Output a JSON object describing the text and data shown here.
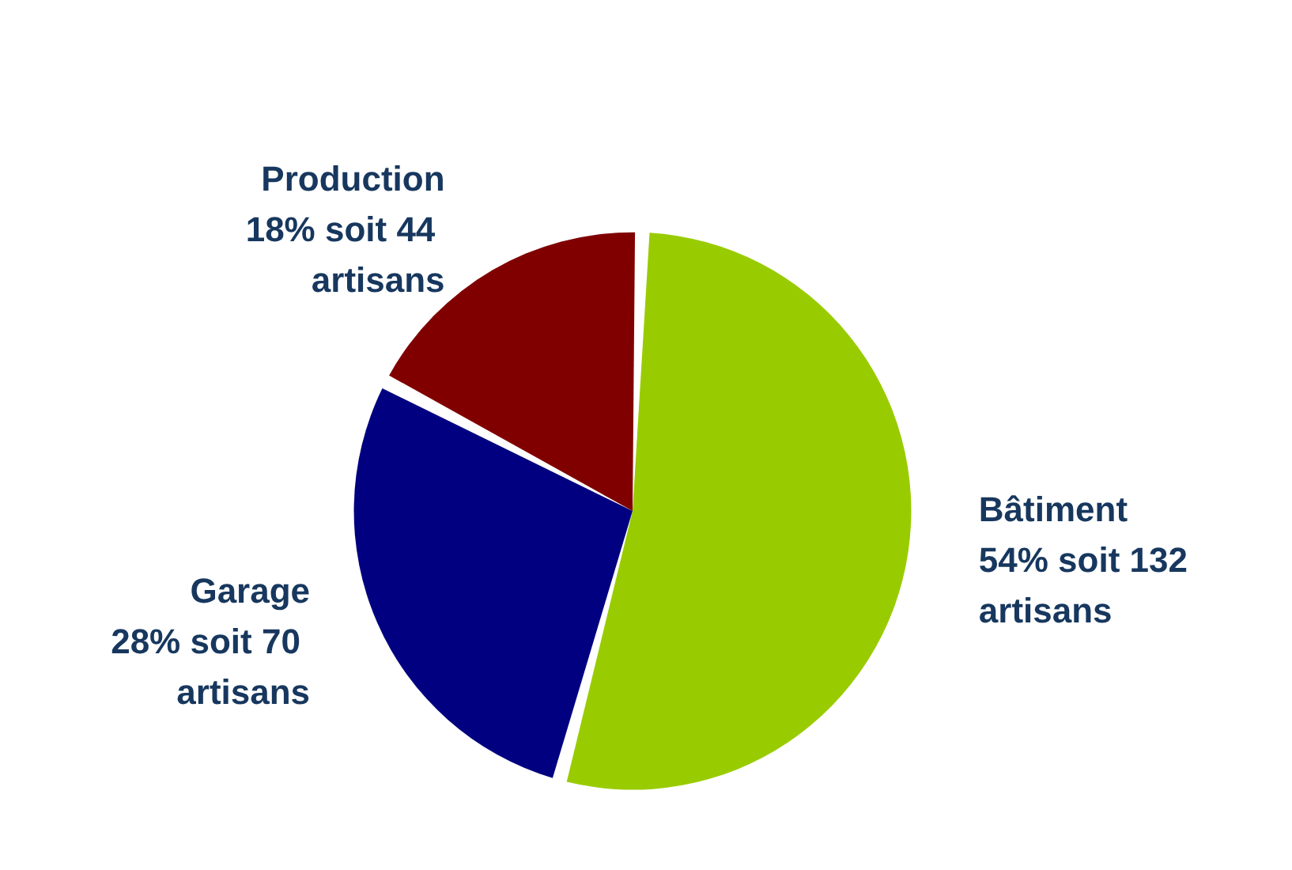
{
  "chart_data": {
    "type": "pie",
    "categories": [
      "Bâtiment",
      "Garage",
      "Production"
    ],
    "values": [
      132,
      70,
      44
    ],
    "value_labels": [
      "54% soit 132 artisans",
      "28% soit 70 artisans",
      "18% soit 44 artisans"
    ],
    "colors": [
      "#99cc00",
      "#000080",
      "#800000"
    ],
    "legend": false
  }
}
